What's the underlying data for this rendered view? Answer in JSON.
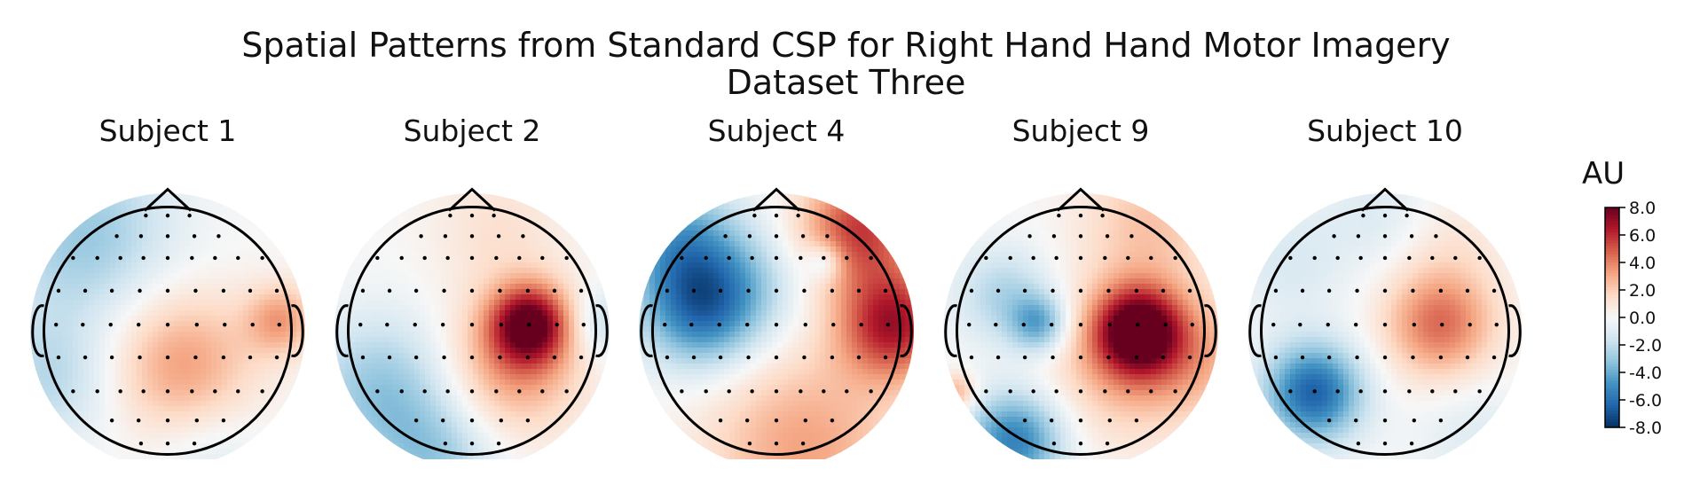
{
  "chart_data": {
    "type": "heatmap",
    "plot_kind": "EEG scalp topographic maps",
    "title": "Spatial Patterns from Standard CSP for Right Hand Hand Motor Imagery",
    "subtitle": "Dataset Three",
    "colormap": "RdBu_r",
    "colorbar": {
      "label": "AU",
      "range": [
        -8.0,
        8.0
      ],
      "ticks": [
        "8.0",
        "6.0",
        "4.0",
        "2.0",
        "0.0",
        "-2.0",
        "-4.0",
        "-6.0",
        "-8.0"
      ]
    },
    "subplots": [
      {
        "title": "Subject 1",
        "sources": [
          {
            "x": 0.1,
            "y": -0.25,
            "v": 3.4,
            "s": 0.38
          },
          {
            "x": 0.82,
            "y": 0.08,
            "v": 3.2,
            "s": 0.18
          },
          {
            "x": -0.6,
            "y": 0.7,
            "v": -3.0,
            "s": 0.45
          },
          {
            "x": -0.85,
            "y": -0.35,
            "v": -2.2,
            "s": 0.35
          },
          {
            "x": 0.3,
            "y": -0.9,
            "v": -1.2,
            "s": 0.3
          }
        ]
      },
      {
        "title": "Subject 2",
        "sources": [
          {
            "x": 0.42,
            "y": 0.05,
            "v": 7.2,
            "s": 0.2
          },
          {
            "x": 0.3,
            "y": -0.25,
            "v": 3.5,
            "s": 0.35
          },
          {
            "x": -0.65,
            "y": -0.45,
            "v": -3.2,
            "s": 0.38
          },
          {
            "x": -0.25,
            "y": -0.95,
            "v": -2.5,
            "s": 0.3
          },
          {
            "x": 0.95,
            "y": 0.05,
            "v": -2.0,
            "s": 0.18
          },
          {
            "x": 0.2,
            "y": 0.75,
            "v": 1.2,
            "s": 0.35
          }
        ]
      },
      {
        "title": "Subject 4",
        "sources": [
          {
            "x": -0.55,
            "y": 0.15,
            "v": -5.5,
            "s": 0.3
          },
          {
            "x": -0.7,
            "y": 0.65,
            "v": -4.0,
            "s": 0.3
          },
          {
            "x": 0.85,
            "y": 0.05,
            "v": 6.5,
            "s": 0.28
          },
          {
            "x": 0.6,
            "y": 0.75,
            "v": 5.5,
            "s": 0.3
          },
          {
            "x": 0.2,
            "y": -0.85,
            "v": 3.2,
            "s": 0.5
          },
          {
            "x": 0.35,
            "y": 0.5,
            "v": -2.5,
            "s": 0.1
          },
          {
            "x": -0.2,
            "y": 0.35,
            "v": -1.8,
            "s": 0.3
          }
        ]
      },
      {
        "title": "Subject 9",
        "sources": [
          {
            "x": 0.42,
            "y": 0.0,
            "v": 7.8,
            "s": 0.22
          },
          {
            "x": 0.35,
            "y": -0.2,
            "v": 3.0,
            "s": 0.4
          },
          {
            "x": -0.48,
            "y": -0.8,
            "v": -5.5,
            "s": 0.25
          },
          {
            "x": -0.3,
            "y": 0.05,
            "v": -4.0,
            "s": 0.15
          },
          {
            "x": -0.55,
            "y": 0.25,
            "v": -2.5,
            "s": 0.25
          },
          {
            "x": -0.9,
            "y": -0.45,
            "v": 3.0,
            "s": 0.1
          },
          {
            "x": 0.5,
            "y": 0.8,
            "v": 2.2,
            "s": 0.35
          },
          {
            "x": 0.9,
            "y": -0.2,
            "v": 1.8,
            "s": 0.3
          }
        ]
      },
      {
        "title": "Subject 10",
        "sources": [
          {
            "x": 0.4,
            "y": 0.05,
            "v": 4.5,
            "s": 0.28
          },
          {
            "x": -0.52,
            "y": -0.45,
            "v": -6.5,
            "s": 0.25
          },
          {
            "x": 0.0,
            "y": 0.85,
            "v": -1.2,
            "s": 0.3
          },
          {
            "x": -0.7,
            "y": 0.5,
            "v": -1.2,
            "s": 0.3
          },
          {
            "x": 0.65,
            "y": -0.75,
            "v": -1.0,
            "s": 0.3
          },
          {
            "x": 0.45,
            "y": 0.7,
            "v": 1.0,
            "s": 0.3
          }
        ]
      }
    ],
    "sensor_grid": "standard 10-10 EEG montage, ~64 electrodes"
  }
}
